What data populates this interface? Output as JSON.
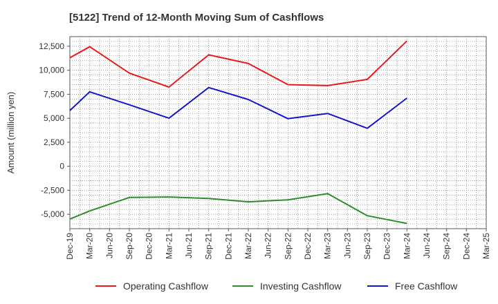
{
  "chart_data": {
    "type": "line",
    "title": "[5122]  Trend of 12-Month Moving Sum of Cashflows",
    "xlabel": "",
    "ylabel": "Amount (million yen)",
    "ylim": [
      -6500,
      13500
    ],
    "yticks": [
      12500,
      10000,
      7500,
      5000,
      2500,
      0,
      -2500,
      -5000
    ],
    "ytick_labels": [
      "12,500",
      "10,000",
      "7,500",
      "5,000",
      "2,500",
      "0",
      "-2,500",
      "-5,000"
    ],
    "categories": [
      "Dec-19",
      "Mar-20",
      "Jun-20",
      "Sep-20",
      "Dec-20",
      "Mar-21",
      "Jun-21",
      "Sep-21",
      "Dec-21",
      "Mar-22",
      "Jun-22",
      "Sep-22",
      "Dec-22",
      "Mar-23",
      "Jun-23",
      "Sep-23",
      "Dec-23",
      "Mar-24",
      "Jun-24",
      "Sep-24",
      "Dec-24",
      "Mar-25"
    ],
    "grid": true,
    "legend_position": "bottom",
    "series": [
      {
        "name": "Operating Cashflow",
        "color": "#e8191a",
        "values": [
          11300,
          12450,
          null,
          9700,
          null,
          8250,
          null,
          11600,
          null,
          10700,
          null,
          8500,
          null,
          8400,
          null,
          9050,
          null,
          13050,
          null,
          null,
          null,
          null
        ]
      },
      {
        "name": "Investing Cashflow",
        "color": "#2e8b2e",
        "values": [
          -5500,
          -4650,
          null,
          -3250,
          null,
          -3200,
          null,
          -3350,
          null,
          -3700,
          null,
          -3500,
          null,
          -2850,
          null,
          -5150,
          null,
          -5950,
          null,
          null,
          null,
          null
        ]
      },
      {
        "name": "Free Cashflow",
        "color": "#1414cc",
        "values": [
          5800,
          7750,
          null,
          6400,
          null,
          5000,
          null,
          8200,
          null,
          6950,
          null,
          4950,
          null,
          5500,
          null,
          3950,
          null,
          7100,
          null,
          null,
          null,
          null
        ]
      }
    ]
  }
}
